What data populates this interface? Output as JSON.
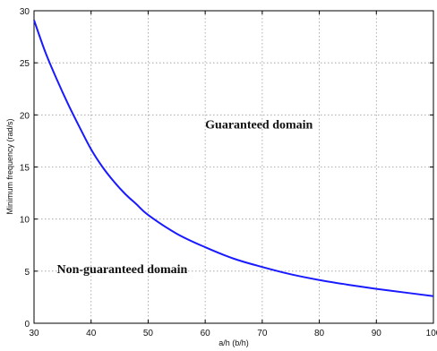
{
  "chart_data": {
    "type": "line",
    "xlabel": "a/h (b/h)",
    "ylabel": "Minimum frequency (rad/s)",
    "xlim": [
      30,
      100
    ],
    "ylim": [
      0,
      30
    ],
    "xticks": [
      30,
      40,
      50,
      60,
      70,
      80,
      90,
      100
    ],
    "yticks": [
      0,
      5,
      10,
      15,
      20,
      25,
      30
    ],
    "grid": true,
    "series": [
      {
        "color": "#1a1aff",
        "x": [
          30,
          32,
          34,
          36,
          38,
          40,
          42,
          44,
          46,
          48,
          50,
          55,
          60,
          65,
          70,
          75,
          80,
          85,
          90,
          95,
          100
        ],
        "y": [
          29.1,
          26.0,
          23.4,
          21.0,
          18.8,
          16.7,
          15.0,
          13.6,
          12.4,
          11.4,
          10.4,
          8.6,
          7.3,
          6.2,
          5.4,
          4.7,
          4.15,
          3.7,
          3.3,
          2.95,
          2.6
        ]
      }
    ],
    "annotations": [
      {
        "text": "Guaranteed domain",
        "x": 60,
        "y": 18.7
      },
      {
        "text": "Non-guaranteed domain",
        "x": 34,
        "y": 4.8
      }
    ]
  }
}
